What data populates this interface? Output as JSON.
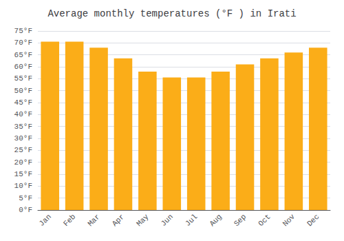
{
  "chart_data": {
    "type": "bar",
    "title": "Average monthly temperatures (°F ) in Irati",
    "categories": [
      "Jan",
      "Feb",
      "Mar",
      "Apr",
      "May",
      "Jun",
      "Jul",
      "Aug",
      "Sep",
      "Oct",
      "Nov",
      "Dec"
    ],
    "values": [
      70.5,
      70.5,
      68,
      63.5,
      58,
      55.5,
      55.5,
      58,
      61,
      63.5,
      66,
      68
    ],
    "color": "#FBAD18",
    "ylim": [
      0,
      75
    ],
    "yticks": [
      {
        "value": 0,
        "label": "0°F"
      },
      {
        "value": 5,
        "label": "5°F"
      },
      {
        "value": 10,
        "label": "10°F"
      },
      {
        "value": 15,
        "label": "15°F"
      },
      {
        "value": 20,
        "label": "20°F"
      },
      {
        "value": 25,
        "label": "25°F"
      },
      {
        "value": 30,
        "label": "30°F"
      },
      {
        "value": 35,
        "label": "35°F"
      },
      {
        "value": 40,
        "label": "40°F"
      },
      {
        "value": 45,
        "label": "45°F"
      },
      {
        "value": 50,
        "label": "50°F"
      },
      {
        "value": 55,
        "label": "55°F"
      },
      {
        "value": 60,
        "label": "60°F"
      },
      {
        "value": 65,
        "label": "65°F"
      },
      {
        "value": 70,
        "label": "70°F"
      },
      {
        "value": 75,
        "label": "75°F"
      }
    ],
    "grid": true
  }
}
